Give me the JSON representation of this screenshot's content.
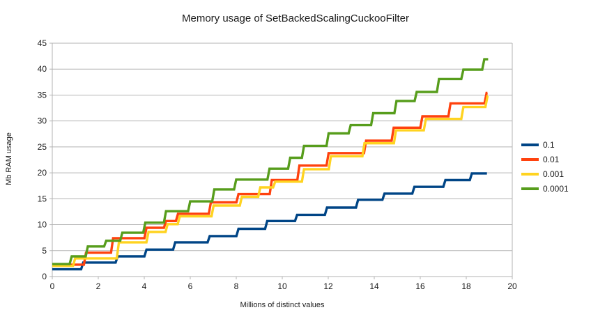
{
  "chart_data": {
    "type": "line",
    "subtype": "step",
    "title": "Memory usage of SetBackedScalingCuckooFilter",
    "xlabel": "Millions of distinct values",
    "ylabel": "Mb RAM usage",
    "xlim": [
      0,
      20
    ],
    "ylim": [
      0,
      45
    ],
    "xticks": [
      0,
      2,
      4,
      6,
      8,
      10,
      12,
      14,
      16,
      18,
      20
    ],
    "yticks": [
      0,
      5,
      10,
      15,
      20,
      25,
      30,
      35,
      40,
      45
    ],
    "grid": "horizontal",
    "grid_color": "#b3b3b3",
    "legend_position": "right",
    "series": [
      {
        "name": "0.1",
        "color": "#004586",
        "end_x": 18.9,
        "points": [
          [
            0,
            1.4
          ],
          [
            1.3,
            2.7
          ],
          [
            2.8,
            3.9
          ],
          [
            4.05,
            5.2
          ],
          [
            5.3,
            6.6
          ],
          [
            6.8,
            7.8
          ],
          [
            8.05,
            9.2
          ],
          [
            9.3,
            10.7
          ],
          [
            10.6,
            11.9
          ],
          [
            11.9,
            13.3
          ],
          [
            13.25,
            14.8
          ],
          [
            14.4,
            16.0
          ],
          [
            15.7,
            17.3
          ],
          [
            17.05,
            18.6
          ],
          [
            18.2,
            19.9
          ]
        ]
      },
      {
        "name": "0.01",
        "color": "#FF420E",
        "end_x": 18.92,
        "points": [
          [
            0,
            2.3
          ],
          [
            1.42,
            4.6
          ],
          [
            2.6,
            7.4
          ],
          [
            4.05,
            9.4
          ],
          [
            4.9,
            10.7
          ],
          [
            5.42,
            12.1
          ],
          [
            6.85,
            14.3
          ],
          [
            8.05,
            15.9
          ],
          [
            9.5,
            18.6
          ],
          [
            10.7,
            21.4
          ],
          [
            11.97,
            23.8
          ],
          [
            13.6,
            26.2
          ],
          [
            14.8,
            28.7
          ],
          [
            16.05,
            30.9
          ],
          [
            17.27,
            33.4
          ],
          [
            18.84,
            35.4
          ]
        ]
      },
      {
        "name": "0.001",
        "color": "#FFD320",
        "end_x": 18.94,
        "points": [
          [
            0,
            2.05
          ],
          [
            0.95,
            3.5
          ],
          [
            2.85,
            6.6
          ],
          [
            4.14,
            8.6
          ],
          [
            4.97,
            10.1
          ],
          [
            5.5,
            11.6
          ],
          [
            6.97,
            13.7
          ],
          [
            8.2,
            15.4
          ],
          [
            9.0,
            17.2
          ],
          [
            9.65,
            18.3
          ],
          [
            10.9,
            20.7
          ],
          [
            12.07,
            23.2
          ],
          [
            13.53,
            25.7
          ],
          [
            14.9,
            28.2
          ],
          [
            16.2,
            30.4
          ],
          [
            17.83,
            32.7
          ],
          [
            18.88,
            34.8
          ]
        ]
      },
      {
        "name": "0.0001",
        "color": "#579D1C",
        "end_x": 18.95,
        "points": [
          [
            0,
            2.4
          ],
          [
            0.8,
            3.9
          ],
          [
            1.5,
            5.8
          ],
          [
            2.3,
            6.9
          ],
          [
            3.0,
            8.45
          ],
          [
            4.0,
            10.4
          ],
          [
            4.9,
            12.6
          ],
          [
            5.95,
            14.5
          ],
          [
            7.0,
            16.8
          ],
          [
            7.95,
            18.7
          ],
          [
            9.4,
            20.8
          ],
          [
            10.3,
            22.9
          ],
          [
            10.9,
            25.2
          ],
          [
            11.97,
            27.6
          ],
          [
            12.93,
            29.2
          ],
          [
            13.91,
            31.5
          ],
          [
            14.92,
            33.85
          ],
          [
            15.8,
            35.6
          ],
          [
            16.77,
            38.1
          ],
          [
            17.83,
            39.9
          ],
          [
            18.74,
            41.9
          ]
        ]
      }
    ]
  }
}
